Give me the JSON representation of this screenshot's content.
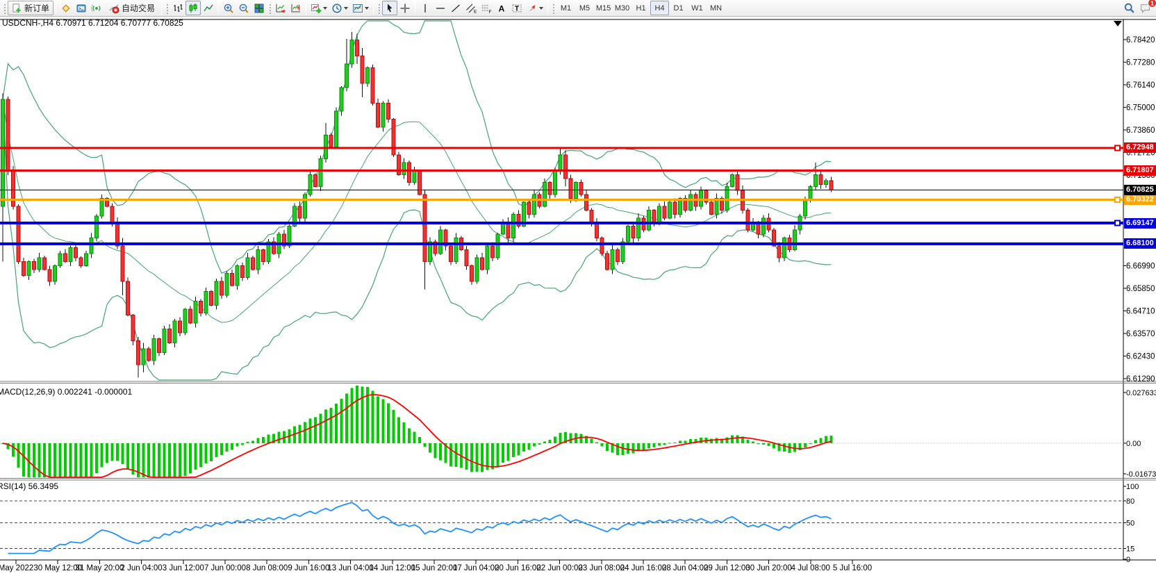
{
  "toolbar": {
    "new_order_label": "新订单",
    "autotrading_label": "自动交易",
    "timeframes": [
      "M1",
      "M5",
      "M15",
      "M30",
      "H1",
      "H4",
      "D1",
      "W1",
      "MN"
    ],
    "active_timeframe": "H4",
    "notification_count": "1"
  },
  "chart": {
    "title": "USDCNH-,H4 6.70971 6.71204 6.70777 6.70825",
    "symbol": "USDCNH-",
    "period": "H4",
    "open": "6.70971",
    "high": "6.71204",
    "low": "6.70777",
    "close": "6.70825"
  },
  "indicator_labels": {
    "macd": "MACD(12,26,9) 0.002241 -0.000001",
    "rsi": "RSI(14) 56.3495"
  },
  "colors": {
    "bull": "#1fce1f",
    "bull_border": "#0b8a0b",
    "bear": "#f03232",
    "bear_border": "#b01010",
    "wick": "#111111",
    "bollinger": "#44a474",
    "macd_hist": "#00cc00",
    "macd_signal": "#ff0000",
    "rsi_line": "#1e90ff",
    "bid_badge": "#000000"
  },
  "chart_data": {
    "type": "candlestick",
    "symbol": "USDCNH",
    "timeframe": "H4",
    "current_bid": 6.70825,
    "price_axis_ticks": [
      "6.78420",
      "6.77280",
      "6.76140",
      "6.75000",
      "6.73860",
      "6.72720",
      "6.71580",
      "6.66990",
      "6.65850",
      "6.64710",
      "6.63570",
      "6.62430",
      "6.61290"
    ],
    "price_range": {
      "top": 6.7842,
      "bottom": 6.6129
    },
    "time_labels": [
      "May 2022",
      "30 May 12:00",
      "31 May 20:00",
      "2 Jun 04:00",
      "3 Jun 12:00",
      "7 Jun 00:00",
      "8 Jun 08:00",
      "9 Jun 16:00",
      "13 Jun 04:00",
      "14 Jun 12:00",
      "15 Jun 20:00",
      "17 Jun 04:00",
      "20 Jun 16:00",
      "22 Jun 00:00",
      "23 Jun 08:00",
      "24 Jun 16:00",
      "28 Jun 04:00",
      "29 Jun 12:00",
      "30 Jun 20:00",
      "4 Jul 08:00",
      "5 Jul 16:00"
    ],
    "levels": [
      {
        "price": 6.72948,
        "label": "6.72948",
        "color": "#e60000",
        "width": 3,
        "marker": true
      },
      {
        "price": 6.71807,
        "label": "6.71807",
        "color": "#e60000",
        "width": 3,
        "marker": false
      },
      {
        "price": 6.70322,
        "label": "6.70322",
        "color": "#ffa500",
        "width": 3,
        "marker": true
      },
      {
        "price": 6.69147,
        "label": "6.69147",
        "color": "#0000dd",
        "width": 4,
        "marker": true
      },
      {
        "price": 6.681,
        "label": "6.68100",
        "color": "#0000dd",
        "width": 4,
        "marker": false
      }
    ],
    "first_open": 6.7,
    "closes": [
      6.754,
      6.718,
      6.7,
      6.672,
      6.665,
      6.672,
      6.668,
      6.674,
      6.668,
      6.662,
      6.67,
      6.676,
      6.672,
      6.679,
      6.674,
      6.67,
      6.676,
      6.684,
      6.695,
      6.704,
      6.7,
      6.692,
      6.68,
      6.662,
      6.645,
      6.632,
      6.62,
      6.628,
      6.622,
      6.633,
      6.626,
      6.638,
      6.631,
      6.642,
      6.636,
      6.648,
      6.641,
      6.652,
      6.646,
      6.657,
      6.65,
      6.662,
      6.655,
      6.666,
      6.66,
      6.67,
      6.664,
      6.674,
      6.668,
      6.678,
      6.672,
      6.682,
      6.676,
      6.686,
      6.68,
      6.69,
      6.7,
      6.694,
      6.706,
      6.716,
      6.71,
      6.724,
      6.736,
      6.73,
      6.748,
      6.76,
      6.772,
      6.784,
      6.776,
      6.762,
      6.77,
      6.752,
      6.74,
      6.752,
      6.744,
      6.726,
      6.716,
      6.722,
      6.712,
      6.718,
      6.706,
      6.672,
      6.682,
      6.676,
      6.688,
      6.68,
      6.672,
      6.684,
      6.678,
      6.67,
      6.662,
      6.674,
      6.668,
      6.68,
      6.674,
      6.686,
      6.692,
      6.684,
      6.696,
      6.69,
      6.702,
      6.696,
      6.706,
      6.7,
      6.712,
      6.706,
      6.718,
      6.726,
      6.714,
      6.704,
      6.712,
      6.706,
      6.698,
      6.692,
      6.684,
      6.676,
      6.668,
      6.678,
      6.672,
      6.682,
      6.69,
      6.684,
      6.694,
      6.688,
      6.698,
      6.692,
      6.7,
      6.694,
      6.702,
      6.696,
      6.704,
      6.698,
      6.706,
      6.7,
      6.708,
      6.702,
      6.696,
      6.704,
      6.698,
      6.71,
      6.716,
      6.708,
      6.698,
      6.688,
      6.692,
      6.686,
      6.694,
      6.688,
      6.68,
      6.674,
      6.684,
      6.678,
      6.688,
      6.695,
      6.703,
      6.71,
      6.716,
      6.711,
      6.713,
      6.70825
    ],
    "wick_overrides": {
      "0": [
        6.757,
        6.672
      ],
      "23": [
        6.684,
        6.655
      ],
      "26": [
        6.634,
        6.6135
      ],
      "27": [
        6.631,
        6.616
      ],
      "62": [
        6.742,
        6.722
      ],
      "66": [
        6.7846,
        6.758
      ],
      "67": [
        6.788,
        6.77
      ],
      "68": [
        6.7872,
        6.772
      ],
      "69": [
        6.78,
        6.755
      ],
      "81": [
        6.708,
        6.658
      ],
      "107": [
        6.7292,
        6.716
      ],
      "108": [
        6.7282,
        6.71
      ],
      "156": [
        6.722,
        6.708
      ]
    },
    "bollinger": {
      "period": 20,
      "deviation": 2
    },
    "macd": {
      "fast": 12,
      "slow": 26,
      "signal": 9,
      "current_macd": 0.002241,
      "current_signal": -1e-06,
      "axis_ticks": [
        {
          "label": "0.027633",
          "value": 0.027633
        },
        {
          "label": "0.00",
          "value": 0.0
        },
        {
          "label": "-0.016736",
          "value": -0.016736
        }
      ]
    },
    "rsi": {
      "period": 14,
      "current": 56.3495,
      "axis_ticks": [
        100,
        80,
        50,
        15,
        0
      ],
      "dashed_levels": [
        80,
        50,
        15
      ]
    }
  }
}
